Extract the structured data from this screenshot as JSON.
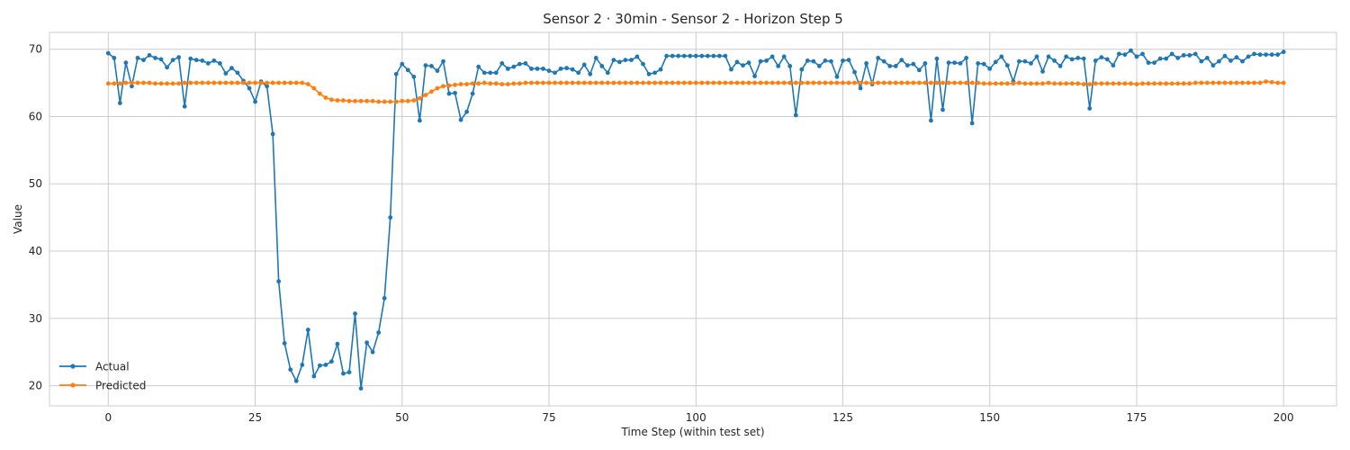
{
  "chart_data": {
    "type": "line",
    "title": "Sensor 2 · 30min - Sensor 2 - Horizon Step 5",
    "xlabel": "Time Step (within test set)",
    "ylabel": "Value",
    "xlim": [
      -10,
      209
    ],
    "ylim": [
      17,
      72.5
    ],
    "xticks": [
      0,
      25,
      50,
      75,
      100,
      125,
      150,
      175,
      200
    ],
    "yticks": [
      20,
      30,
      40,
      50,
      60,
      70
    ],
    "grid": true,
    "legend_position": "lower-left",
    "series": [
      {
        "name": "Actual",
        "color": "#1f77b4",
        "marker": "circle",
        "values": [
          69.4,
          68.7,
          62.0,
          68.0,
          64.5,
          68.7,
          68.4,
          69.1,
          68.7,
          68.5,
          67.3,
          68.4,
          68.8,
          61.5,
          68.6,
          68.4,
          68.3,
          67.9,
          68.3,
          67.9,
          66.4,
          67.2,
          66.5,
          65.3,
          64.2,
          62.2,
          65.2,
          64.5,
          57.4,
          35.5,
          26.3,
          22.4,
          20.7,
          23.1,
          28.3,
          21.4,
          23.0,
          23.1,
          23.6,
          26.2,
          21.8,
          22.0,
          30.7,
          19.6,
          26.4,
          25.0,
          27.9,
          33.0,
          45.0,
          66.3,
          67.8,
          66.9,
          65.9,
          59.4,
          67.6,
          67.5,
          66.8,
          68.2,
          63.4,
          63.5,
          59.5,
          60.7,
          63.4,
          67.4,
          66.5,
          66.5,
          66.5,
          67.9,
          67.1,
          67.4,
          67.8,
          67.9,
          67.1,
          67.1,
          67.1,
          66.8,
          66.5,
          67.1,
          67.2,
          67.0,
          66.5,
          67.7,
          66.3,
          68.7,
          67.5,
          66.5,
          68.4,
          68.1,
          68.4,
          68.4,
          68.9,
          67.8,
          66.3,
          66.5,
          67.0,
          69.0,
          69.0,
          69.0,
          69.0,
          69.0,
          69.0,
          69.0,
          69.0,
          69.0,
          69.0,
          69.0,
          67.0,
          68.1,
          67.6,
          68.0,
          66.0,
          68.2,
          68.3,
          68.9,
          67.5,
          68.9,
          67.5,
          60.2,
          67.0,
          68.3,
          68.2,
          67.5,
          68.3,
          68.2,
          65.9,
          68.3,
          68.4,
          66.6,
          64.2,
          67.9,
          64.8,
          68.7,
          68.2,
          67.5,
          67.5,
          68.4,
          67.6,
          67.8,
          66.9,
          67.9,
          59.4,
          68.6,
          61.0,
          68.0,
          68.0,
          67.9,
          68.7,
          59.0,
          67.9,
          67.8,
          67.1,
          68.1,
          68.9,
          67.6,
          65.2,
          68.2,
          68.2,
          67.9,
          68.9,
          66.7,
          68.9,
          68.3,
          67.5,
          68.9,
          68.5,
          68.7,
          68.6,
          61.2,
          68.3,
          68.8,
          68.5,
          67.6,
          69.3,
          69.2,
          69.8,
          68.9,
          69.3,
          68.0,
          68.0,
          68.6,
          68.6,
          69.3,
          68.7,
          69.1,
          69.1,
          69.3,
          68.2,
          68.7,
          67.6,
          68.2,
          69.0,
          68.3,
          68.8,
          68.2,
          68.9,
          69.3,
          69.2,
          69.2,
          69.2,
          69.2,
          69.6
        ]
      },
      {
        "name": "Predicted",
        "color": "#ff7f0e",
        "marker": "circle",
        "values": [
          64.9,
          64.9,
          64.9,
          65.0,
          65.0,
          65.0,
          65.0,
          65.0,
          64.9,
          64.9,
          64.9,
          64.9,
          64.9,
          65.0,
          65.0,
          65.0,
          65.0,
          65.0,
          65.0,
          65.0,
          65.0,
          65.0,
          65.0,
          65.0,
          65.0,
          65.0,
          65.0,
          65.0,
          65.0,
          65.0,
          65.0,
          65.0,
          65.0,
          65.0,
          64.8,
          64.2,
          63.4,
          62.8,
          62.5,
          62.4,
          62.4,
          62.3,
          62.3,
          62.3,
          62.3,
          62.3,
          62.2,
          62.2,
          62.2,
          62.2,
          62.3,
          62.3,
          62.4,
          62.7,
          63.2,
          63.7,
          64.2,
          64.5,
          64.6,
          64.7,
          64.8,
          64.8,
          64.9,
          64.9,
          65.0,
          64.9,
          64.9,
          64.8,
          64.8,
          64.9,
          64.9,
          65.0,
          65.0,
          65.0,
          65.0,
          65.0,
          65.0,
          65.0,
          65.0,
          65.0,
          65.0,
          65.0,
          65.0,
          65.0,
          65.0,
          65.0,
          65.0,
          65.0,
          65.0,
          65.0,
          65.0,
          65.0,
          65.0,
          65.0,
          65.0,
          65.0,
          65.0,
          65.0,
          65.0,
          65.0,
          65.0,
          65.0,
          65.0,
          65.0,
          65.0,
          65.0,
          65.0,
          65.0,
          65.0,
          65.0,
          65.0,
          65.0,
          65.0,
          65.0,
          65.0,
          65.0,
          65.0,
          65.0,
          65.0,
          65.0,
          65.0,
          65.0,
          65.0,
          65.0,
          65.0,
          65.0,
          65.0,
          65.0,
          65.0,
          65.0,
          65.0,
          65.0,
          65.0,
          65.0,
          65.0,
          65.0,
          65.0,
          65.0,
          65.0,
          65.0,
          65.0,
          65.0,
          65.0,
          65.0,
          65.0,
          65.0,
          65.0,
          65.0,
          65.0,
          64.9,
          64.9,
          64.9,
          64.9,
          64.9,
          64.9,
          65.0,
          64.9,
          64.9,
          64.9,
          64.9,
          65.0,
          64.9,
          64.9,
          64.9,
          64.9,
          64.9,
          64.8,
          64.8,
          64.9,
          64.9,
          64.9,
          64.9,
          64.9,
          64.9,
          64.9,
          64.8,
          64.9,
          64.9,
          64.9,
          64.9,
          64.9,
          64.9,
          64.9,
          64.9,
          64.9,
          65.0,
          65.0,
          65.0,
          65.0,
          65.0,
          65.0,
          65.0,
          65.0,
          65.0,
          65.0,
          65.0,
          65.0,
          65.2,
          65.1,
          65.0,
          65.0
        ]
      }
    ]
  }
}
